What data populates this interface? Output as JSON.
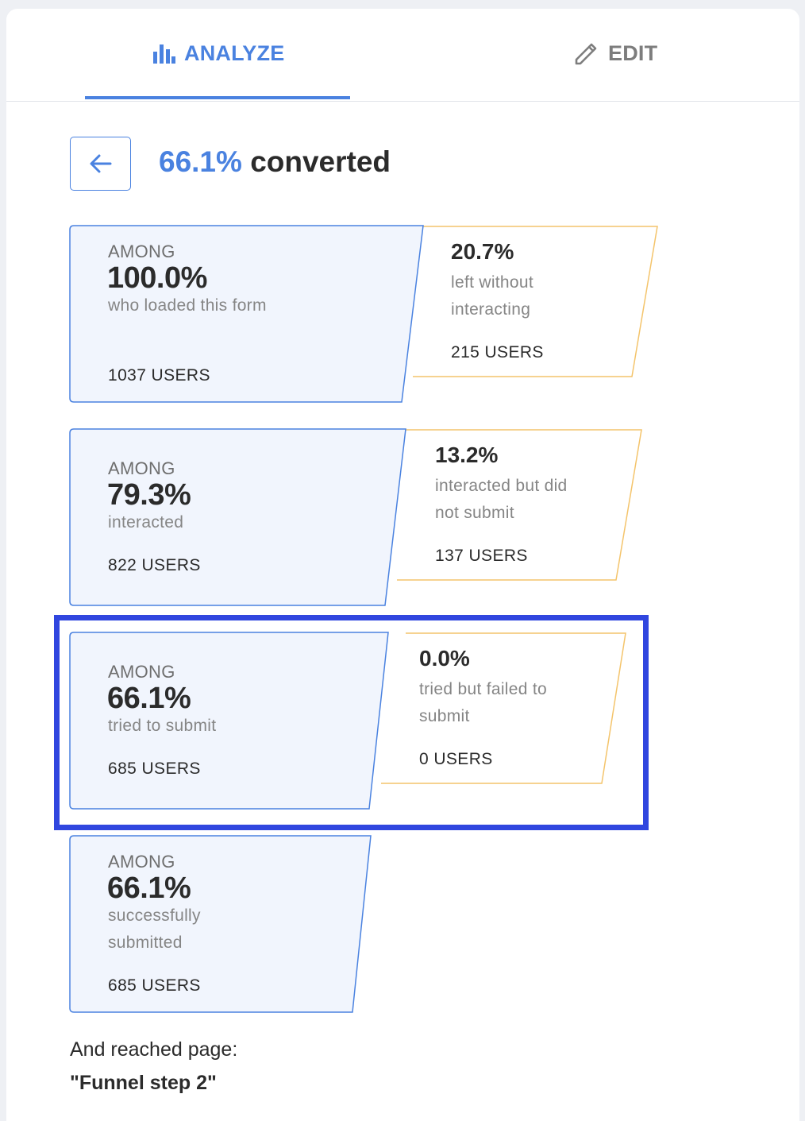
{
  "tabs": {
    "analyze_label": "ANALYZE",
    "edit_label": "EDIT",
    "active": "analyze"
  },
  "header": {
    "conversion_pct": "66.1%",
    "conversion_label": "converted"
  },
  "funnel": [
    {
      "among_label": "AMONG",
      "pct": "100.0%",
      "desc": "who loaded this form",
      "users": "1037 USERS",
      "dropoff": {
        "pct": "20.7%",
        "desc": "left without interacting",
        "users": "215 USERS"
      }
    },
    {
      "among_label": "AMONG",
      "pct": "79.3%",
      "desc": "interacted",
      "users": "822 USERS",
      "dropoff": {
        "pct": "13.2%",
        "desc": "interacted but did not submit",
        "users": "137 USERS"
      }
    },
    {
      "among_label": "AMONG",
      "pct": "66.1%",
      "desc": "tried to submit",
      "users": "685 USERS",
      "dropoff": {
        "pct": "0.0%",
        "desc": "tried but failed to submit",
        "users": "0 USERS"
      },
      "highlighted": true
    },
    {
      "among_label": "AMONG",
      "pct": "66.1%",
      "desc": "successfully submitted",
      "users": "685 USERS"
    }
  ],
  "footer": {
    "line1": "And reached page:",
    "page_name": "\"Funnel step 2\""
  },
  "colors": {
    "accent": "#4a82e0",
    "card_fill": "#f1f5fd",
    "dropoff_border": "#f4c46b",
    "highlight_border": "#3046df"
  },
  "icons": {
    "analyze": "bar-chart-icon",
    "edit": "pencil-icon",
    "back": "arrow-left-icon"
  }
}
